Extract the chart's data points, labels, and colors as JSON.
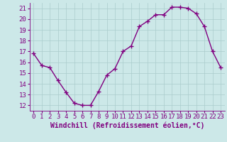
{
  "x": [
    0,
    1,
    2,
    3,
    4,
    5,
    6,
    7,
    8,
    9,
    10,
    11,
    12,
    13,
    14,
    15,
    16,
    17,
    18,
    19,
    20,
    21,
    22,
    23
  ],
  "y": [
    16.8,
    15.7,
    15.5,
    14.3,
    13.2,
    12.2,
    12.0,
    12.0,
    13.3,
    14.8,
    15.4,
    17.0,
    17.5,
    19.3,
    19.8,
    20.4,
    20.4,
    21.1,
    21.1,
    21.0,
    20.5,
    19.3,
    17.0,
    15.5
  ],
  "line_color": "#800080",
  "marker": "+",
  "marker_size": 4,
  "marker_linewidth": 1.0,
  "line_width": 1.0,
  "bg_color": "#cce8e8",
  "grid_color": "#aacccc",
  "xlabel": "Windchill (Refroidissement éolien,°C)",
  "yticks": [
    12,
    13,
    14,
    15,
    16,
    17,
    18,
    19,
    20,
    21
  ],
  "xticks": [
    0,
    1,
    2,
    3,
    4,
    5,
    6,
    7,
    8,
    9,
    10,
    11,
    12,
    13,
    14,
    15,
    16,
    17,
    18,
    19,
    20,
    21,
    22,
    23
  ],
  "xlim": [
    -0.5,
    23.5
  ],
  "ylim": [
    11.5,
    21.5
  ],
  "tick_label_fontsize": 6.5,
  "xlabel_fontsize": 7.0
}
